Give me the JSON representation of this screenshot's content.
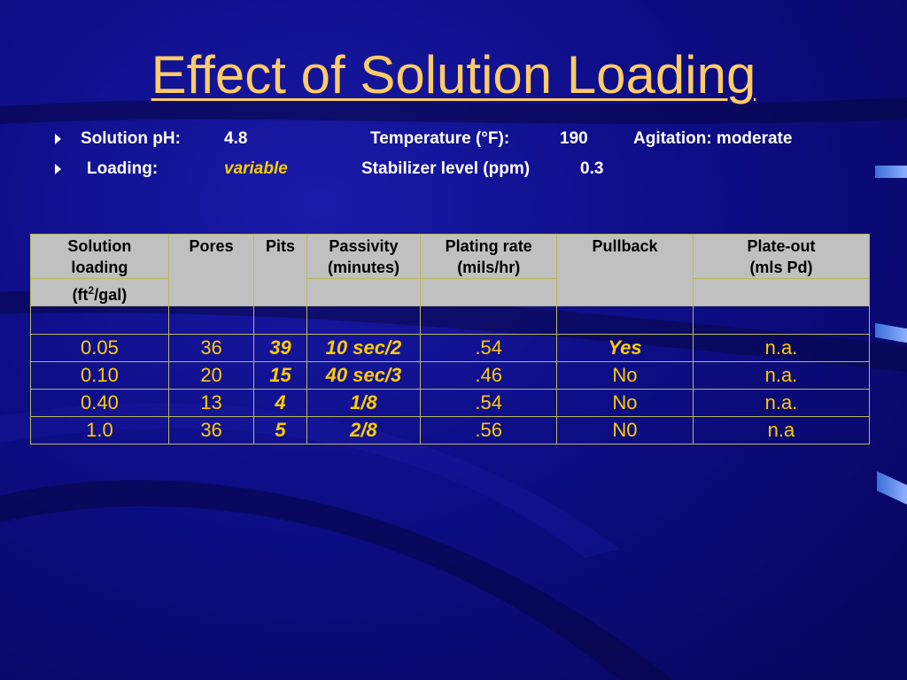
{
  "title": "Effect of Solution Loading",
  "bullets": [
    {
      "ph_label": "Solution pH:",
      "ph_value": "4.8",
      "temp_label": "Temperature (°F):",
      "temp_value": "190",
      "agitation": "Agitation: moderate"
    },
    {
      "loading_label": "Loading:",
      "loading_value": "variable",
      "stabilizer_label": "Stabilizer level (ppm)",
      "stabilizer_value": "0.3"
    }
  ],
  "table": {
    "headers": {
      "solution_loading_1": "Solution",
      "solution_loading_2": "loading",
      "solution_loading_unit_a": "(ft",
      "solution_loading_unit_sup": "2",
      "solution_loading_unit_b": "/gal)",
      "pores": "Pores",
      "pits": "Pits",
      "passivity_1": "Passivity",
      "passivity_2": "(minutes)",
      "plating_1": "Plating rate",
      "plating_2": "(mils/hr)",
      "pullback": "Pullback",
      "plateout_1": "Plate-out",
      "plateout_2": "(mls Pd)"
    },
    "rows": [
      [
        "0.05",
        "36",
        "39",
        "10 sec/2",
        ".54",
        "Yes",
        "n.a."
      ],
      [
        "0.10",
        "20",
        "15",
        "40 sec/3",
        ".46",
        "No",
        "n.a."
      ],
      [
        "0.40",
        "13",
        "4",
        "1/8",
        ".54",
        "No",
        "n.a."
      ],
      [
        "1.0",
        "36",
        "5",
        "2/8",
        ".56",
        "N0",
        "n.a"
      ]
    ]
  },
  "colors": {
    "title": "#ffcc66",
    "cell_text": "#ffcc00",
    "header_bg": "#c0c0c0",
    "background": "#0d0d86"
  }
}
